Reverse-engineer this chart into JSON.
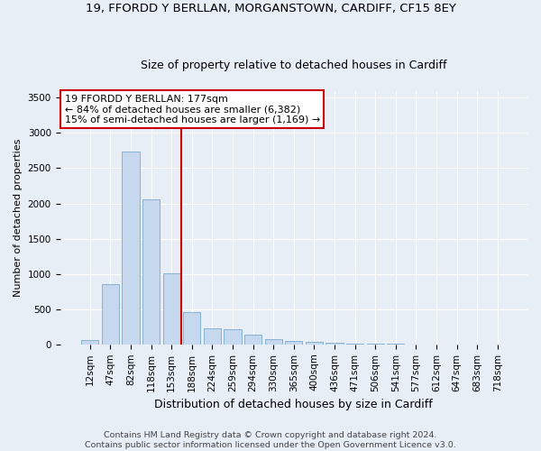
{
  "title_line1": "19, FFORDD Y BERLLAN, MORGANSTOWN, CARDIFF, CF15 8EY",
  "title_line2": "Size of property relative to detached houses in Cardiff",
  "xlabel": "Distribution of detached houses by size in Cardiff",
  "ylabel": "Number of detached properties",
  "categories": [
    "12sqm",
    "47sqm",
    "82sqm",
    "118sqm",
    "153sqm",
    "188sqm",
    "224sqm",
    "259sqm",
    "294sqm",
    "330sqm",
    "365sqm",
    "400sqm",
    "436sqm",
    "471sqm",
    "506sqm",
    "541sqm",
    "577sqm",
    "612sqm",
    "647sqm",
    "683sqm",
    "718sqm"
  ],
  "values": [
    65,
    855,
    2730,
    2060,
    1005,
    455,
    230,
    215,
    135,
    75,
    55,
    30,
    20,
    10,
    5,
    5,
    0,
    0,
    0,
    0,
    0
  ],
  "bar_color": "#c5d8ed",
  "bar_edge_color": "#7aabce",
  "vline_x": 4.5,
  "vline_color": "#cc0000",
  "annotation_line1": "19 FFORDD Y BERLLAN: 177sqm",
  "annotation_line2": "← 84% of detached houses are smaller (6,382)",
  "annotation_line3": "15% of semi-detached houses are larger (1,169) →",
  "annotation_box_color": "white",
  "annotation_box_edge_color": "#cc0000",
  "ylim": [
    0,
    3600
  ],
  "yticks": [
    0,
    500,
    1000,
    1500,
    2000,
    2500,
    3000,
    3500
  ],
  "footer_line1": "Contains HM Land Registry data © Crown copyright and database right 2024.",
  "footer_line2": "Contains public sector information licensed under the Open Government Licence v3.0.",
  "bg_color": "#e8eef5",
  "grid_color": "#ffffff",
  "title1_fontsize": 9.5,
  "title2_fontsize": 9,
  "xlabel_fontsize": 9,
  "ylabel_fontsize": 8,
  "tick_fontsize": 7.5,
  "footer_fontsize": 6.8,
  "annotation_fontsize": 8
}
